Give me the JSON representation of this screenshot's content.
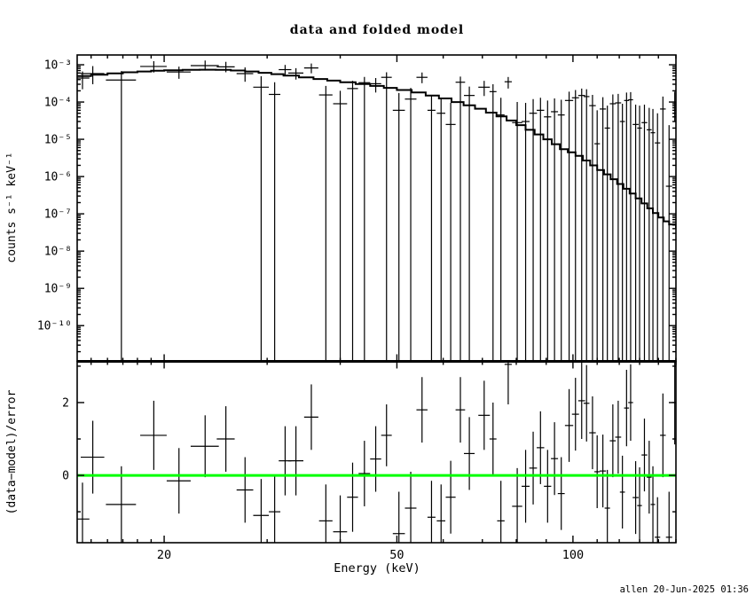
{
  "page": {
    "background": "#ffffff",
    "timestamp": "allen 20-Jun-2025 01:36"
  },
  "chart_data": {
    "type": "scatter",
    "title": "data and folded model",
    "xlabel": "Energy (keV)",
    "x_scale": "log",
    "xlim": [
      14.2,
      150
    ],
    "x_tick_labels": [
      {
        "e": 20,
        "label": "20"
      },
      {
        "e": 50,
        "label": "50"
      },
      {
        "e": 100,
        "label": "100"
      }
    ],
    "x_minor_ticks": [
      15,
      16,
      17,
      18,
      19,
      30,
      40,
      60,
      70,
      80,
      90,
      110,
      120,
      130,
      140,
      150
    ],
    "colors": {
      "data": "#000000",
      "model": "#000000",
      "zero_line": "#00ff00"
    },
    "panels": [
      {
        "name": "spectrum",
        "ylabel": "counts s⁻¹ keV⁻¹",
        "y_scale": "log",
        "ylim": [
          1.1e-11,
          0.00183
        ],
        "y_tick_labels": [
          {
            "exp": -3,
            "label": "10⁻³"
          },
          {
            "exp": -4,
            "label": "10⁻⁴"
          },
          {
            "exp": -5,
            "label": "10⁻⁵"
          },
          {
            "exp": -6,
            "label": "10⁻⁶"
          },
          {
            "exp": -7,
            "label": "10⁻⁷"
          },
          {
            "exp": -8,
            "label": "10⁻⁸"
          },
          {
            "exp": -9,
            "label": "10⁻⁹"
          },
          {
            "exp": -10,
            "label": "10⁻¹⁰"
          }
        ],
        "series_names": [
          "data",
          "folded model"
        ],
        "data_columns": [
          "energy_keV",
          "energy_halfwidth_keV",
          "rate",
          "rate_err_lo_bound",
          "rate_err_hi_bound",
          "chi",
          "chi_err"
        ],
        "note_null_lower_bound": "null lower bound means error bar extends below plotted range (drawn to panel bottom)",
        "model_step_points": [
          [
            14.2,
            0.0005
          ],
          [
            15,
            0.00054
          ],
          [
            16,
            0.00059
          ],
          [
            17,
            0.00063
          ],
          [
            18,
            0.00066
          ],
          [
            19,
            0.00069
          ],
          [
            20,
            0.00071
          ],
          [
            21.5,
            0.00073
          ],
          [
            23,
            0.000735
          ],
          [
            24.5,
            0.00073
          ],
          [
            26,
            0.0007
          ],
          [
            27.5,
            0.00066
          ],
          [
            29,
            0.00061
          ],
          [
            30.5,
            0.00056
          ],
          [
            32,
            0.00051
          ],
          [
            34,
            0.00046
          ],
          [
            36,
            0.000415
          ],
          [
            38,
            0.000375
          ],
          [
            40,
            0.00034
          ],
          [
            42.5,
            0.000305
          ],
          [
            45,
            0.00027
          ],
          [
            47.5,
            0.00024
          ],
          [
            50,
            0.00021
          ],
          [
            53,
            0.00018
          ],
          [
            56,
            0.00015
          ],
          [
            59,
            0.000125
          ],
          [
            62,
            0.0001
          ],
          [
            65,
            8.2e-05
          ],
          [
            68,
            6.6e-05
          ],
          [
            71,
            5.2e-05
          ],
          [
            74,
            4.1e-05
          ],
          [
            77,
            3.2e-05
          ],
          [
            80,
            2.4e-05
          ],
          [
            83,
            1.8e-05
          ],
          [
            86,
            1.35e-05
          ],
          [
            89,
            1e-05
          ],
          [
            92,
            7.4e-06
          ],
          [
            95,
            5.4e-06
          ],
          [
            98,
            4.5e-06
          ],
          [
            101,
            3.6e-06
          ],
          [
            104,
            2.7e-06
          ],
          [
            107,
            2e-06
          ],
          [
            110,
            1.5e-06
          ],
          [
            113,
            1.15e-06
          ],
          [
            116,
            8.5e-07
          ],
          [
            119,
            6.3e-07
          ],
          [
            122,
            4.7e-07
          ],
          [
            125,
            3.5e-07
          ],
          [
            128,
            2.6e-07
          ],
          [
            131,
            1.9e-07
          ],
          [
            134,
            1.4e-07
          ],
          [
            137,
            1.05e-07
          ],
          [
            140,
            8e-08
          ],
          [
            143,
            6.3e-08
          ],
          [
            146,
            5.2e-08
          ],
          [
            150,
            4.2e-08
          ]
        ],
        "rows": [
          [
            14.5,
            0.4,
            0.00044,
            0.00022,
            0.00066,
            -1.2,
            1.0
          ],
          [
            15.1,
            0.7,
            0.00058,
            0.0003,
            0.00092,
            0.5,
            1.0
          ],
          [
            16.9,
            1.0,
            0.00039,
            null,
            0.00068,
            -0.8,
            1.05
          ],
          [
            19.2,
            1.0,
            0.0009,
            0.00062,
            0.00125,
            1.1,
            0.95
          ],
          [
            21.2,
            1.0,
            0.00064,
            0.00042,
            0.00089,
            -0.15,
            0.9
          ],
          [
            23.5,
            1.3,
            0.00095,
            0.0007,
            0.0013,
            0.8,
            0.85
          ],
          [
            25.5,
            0.9,
            0.00088,
            0.00063,
            0.0012,
            1.0,
            0.9
          ],
          [
            27.5,
            0.9,
            0.00058,
            0.00035,
            0.00085,
            -0.4,
            0.9
          ],
          [
            29.3,
            0.9,
            0.00025,
            null,
            0.00049,
            -1.1,
            1.0
          ],
          [
            30.9,
            0.7,
            0.00016,
            null,
            0.00034,
            -1.0,
            1.0
          ],
          [
            32.2,
            0.8,
            0.00074,
            0.00051,
            0.00099,
            0.4,
            0.95
          ],
          [
            33.6,
            1.0,
            0.0006,
            0.0004,
            0.00081,
            0.4,
            0.95
          ],
          [
            35.7,
            1.0,
            0.00082,
            0.00059,
            0.00108,
            1.6,
            0.9
          ],
          [
            37.8,
            1.0,
            0.000155,
            null,
            0.00027,
            -1.25,
            1.0
          ],
          [
            40.0,
            1.1,
            9e-05,
            null,
            0.0002,
            -1.55,
            1.0
          ],
          [
            42.0,
            0.9,
            0.00023,
            null,
            0.00037,
            -0.6,
            0.95
          ],
          [
            44.0,
            1.0,
            0.00033,
            null,
            0.00047,
            0.05,
            0.9
          ],
          [
            46.0,
            1.0,
            0.00031,
            0.00018,
            0.00044,
            0.45,
            0.9
          ],
          [
            48.0,
            1.0,
            0.00046,
            null,
            0.00063,
            1.1,
            0.85
          ],
          [
            50.4,
            1.2,
            6e-05,
            null,
            0.000175,
            -1.6,
            1.15
          ],
          [
            52.8,
            1.2,
            0.00012,
            null,
            0.00024,
            -0.9,
            1.0
          ],
          [
            55.2,
            1.2,
            0.00046,
            0.00032,
            0.00062,
            1.8,
            0.9
          ],
          [
            57.3,
            0.9,
            6e-05,
            null,
            0.00015,
            -1.15,
            1.0
          ],
          [
            59.5,
            1.0,
            5e-05,
            null,
            0.00013,
            -1.25,
            1.0
          ],
          [
            61.8,
            1.2,
            2.5e-05,
            null,
            9.5e-05,
            -0.6,
            1.0
          ],
          [
            64.2,
            1.2,
            0.00034,
            null,
            0.00048,
            1.8,
            0.9
          ],
          [
            66.5,
            1.4,
            0.00015,
            null,
            0.00026,
            0.6,
            1.0
          ],
          [
            70.5,
            1.6,
            0.00025,
            0.000145,
            0.00037,
            1.65,
            0.95
          ],
          [
            73.0,
            1.0,
            0.00019,
            null,
            0.0003,
            1.0,
            1.0
          ],
          [
            75.3,
            1.1,
            4.5e-05,
            null,
            0.00013,
            -1.25,
            1.1
          ],
          [
            77.5,
            1.1,
            0.00035,
            0.00023,
            0.00047,
            3.05,
            1.1
          ],
          [
            80.3,
            1.6,
            2.8e-05,
            null,
            0.0001,
            -0.85,
            1.05
          ],
          [
            83.0,
            1.3,
            3e-05,
            null,
            9.5e-05,
            -0.3,
            1.0
          ],
          [
            85.5,
            1.3,
            5e-05,
            null,
            0.00012,
            0.2,
            1.0
          ],
          [
            88.0,
            1.3,
            6e-05,
            null,
            0.00013,
            0.76,
            1.0
          ],
          [
            90.5,
            1.3,
            4e-05,
            null,
            0.00011,
            -0.3,
            1.0
          ],
          [
            93.0,
            1.3,
            5.5e-05,
            null,
            0.000125,
            0.46,
            1.0
          ],
          [
            95.5,
            1.3,
            4.5e-05,
            null,
            0.000115,
            -0.5,
            1.0
          ],
          [
            98.5,
            1.6,
            0.00011,
            null,
            0.00019,
            1.37,
            1.0
          ],
          [
            101.0,
            1.4,
            0.00013,
            null,
            0.00021,
            1.68,
            1.0
          ],
          [
            103.5,
            1.4,
            0.00015,
            null,
            0.00023,
            2.05,
            1.05
          ],
          [
            105.5,
            1.2,
            0.00014,
            null,
            0.00022,
            1.98,
            1.05
          ],
          [
            108.0,
            1.4,
            8e-05,
            null,
            0.000155,
            1.17,
            1.0
          ],
          [
            110.0,
            1.2,
            7.6e-06,
            null,
            6e-05,
            0.1,
            1.0
          ],
          [
            112.5,
            1.4,
            6.5e-05,
            null,
            0.000135,
            0.12,
            1.0
          ],
          [
            114.5,
            1.2,
            2e-05,
            null,
            8e-05,
            -0.9,
            1.05
          ],
          [
            117.0,
            1.4,
            9e-05,
            null,
            0.00016,
            0.95,
            1.0
          ],
          [
            119.5,
            1.4,
            9.5e-05,
            null,
            0.000165,
            1.05,
            1.0
          ],
          [
            121.5,
            1.2,
            3e-05,
            null,
            9e-05,
            -0.46,
            1.0
          ],
          [
            123.5,
            1.2,
            0.00011,
            null,
            0.00018,
            1.85,
            1.05
          ],
          [
            125.5,
            1.2,
            0.000115,
            null,
            0.000185,
            2.0,
            1.05
          ],
          [
            128.0,
            1.5,
            2.5e-05,
            null,
            8.5e-05,
            -0.61,
            1.0
          ],
          [
            130.0,
            1.2,
            2e-05,
            null,
            8e-05,
            -0.83,
            1.05
          ],
          [
            132.5,
            1.5,
            2.8e-05,
            null,
            8.5e-05,
            0.56,
            1.0
          ],
          [
            135.0,
            1.3,
            1.8e-05,
            null,
            7e-05,
            -0.05,
            1.0
          ],
          [
            137.0,
            1.2,
            1.5e-05,
            null,
            6.5e-05,
            -0.8,
            1.05
          ],
          [
            139.5,
            1.5,
            8e-06,
            null,
            5e-05,
            -1.7,
            1.1
          ],
          [
            142.5,
            1.6,
            6.5e-05,
            null,
            0.00014,
            1.1,
            1.15
          ],
          [
            146.0,
            1.8,
            5.5e-07,
            null,
            2.4e-05,
            -1.7,
            1.25
          ],
          [
            149.3,
            1.5,
            0.0001,
            3e-05,
            0.00019,
            2.0,
            1.15
          ]
        ]
      },
      {
        "name": "residuals",
        "ylabel": "(data−model)/error",
        "y_scale": "linear",
        "ylim": [
          -1.85,
          3.12
        ],
        "y_tick_labels": [
          {
            "v": 2,
            "label": "2"
          },
          {
            "v": 0,
            "label": "0"
          }
        ],
        "y_minor_ticks": [
          -1,
          1,
          3
        ],
        "zero_line_value": 0,
        "zero_line_color": "#00ff00"
      }
    ]
  }
}
